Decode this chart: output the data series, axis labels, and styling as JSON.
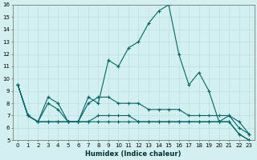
{
  "xlabel": "Humidex (Indice chaleur)",
  "x": [
    0,
    1,
    2,
    3,
    4,
    5,
    6,
    7,
    8,
    9,
    10,
    11,
    12,
    13,
    14,
    15,
    16,
    17,
    18,
    19,
    20,
    21,
    22,
    23
  ],
  "series": [
    {
      "y": [
        9.5,
        7.0,
        6.5,
        8.5,
        8.0,
        6.5,
        6.5,
        8.5,
        8.0,
        11.5,
        11.0,
        12.5,
        13.0,
        14.5,
        15.5,
        16.0,
        12.0,
        9.5,
        10.5,
        9.0,
        6.5,
        6.5,
        5.5,
        5.0
      ],
      "marker": true
    },
    {
      "y": [
        9.5,
        7.0,
        6.5,
        8.0,
        7.5,
        6.5,
        6.5,
        8.0,
        8.5,
        8.5,
        8.0,
        8.0,
        8.0,
        7.5,
        7.5,
        7.5,
        7.5,
        7.0,
        7.0,
        7.0,
        7.0,
        7.0,
        6.0,
        5.5
      ],
      "marker": true
    },
    {
      "y": [
        9.5,
        7.0,
        6.5,
        6.5,
        6.5,
        6.5,
        6.5,
        6.5,
        7.0,
        7.0,
        7.0,
        7.0,
        6.5,
        6.5,
        6.5,
        6.5,
        6.5,
        6.5,
        6.5,
        6.5,
        6.5,
        7.0,
        6.5,
        5.5
      ],
      "marker": true
    },
    {
      "y": [
        9.5,
        7.0,
        6.5,
        6.5,
        6.5,
        6.5,
        6.5,
        6.5,
        6.5,
        6.5,
        6.5,
        6.5,
        6.5,
        6.5,
        6.5,
        6.5,
        6.5,
        6.5,
        6.5,
        6.5,
        6.5,
        6.5,
        5.5,
        5.0
      ],
      "marker": true
    }
  ],
  "line_color": "#006666",
  "bg_color": "#d4efef",
  "grid_color": "#b8dede",
  "ylim": [
    5,
    16
  ],
  "yticks": [
    5,
    6,
    7,
    8,
    9,
    10,
    11,
    12,
    13,
    14,
    15,
    16
  ],
  "xticks": [
    0,
    1,
    2,
    3,
    4,
    5,
    6,
    7,
    8,
    9,
    10,
    11,
    12,
    13,
    14,
    15,
    16,
    17,
    18,
    19,
    20,
    21,
    22,
    23
  ],
  "xlabel_fontsize": 6,
  "tick_fontsize": 5
}
